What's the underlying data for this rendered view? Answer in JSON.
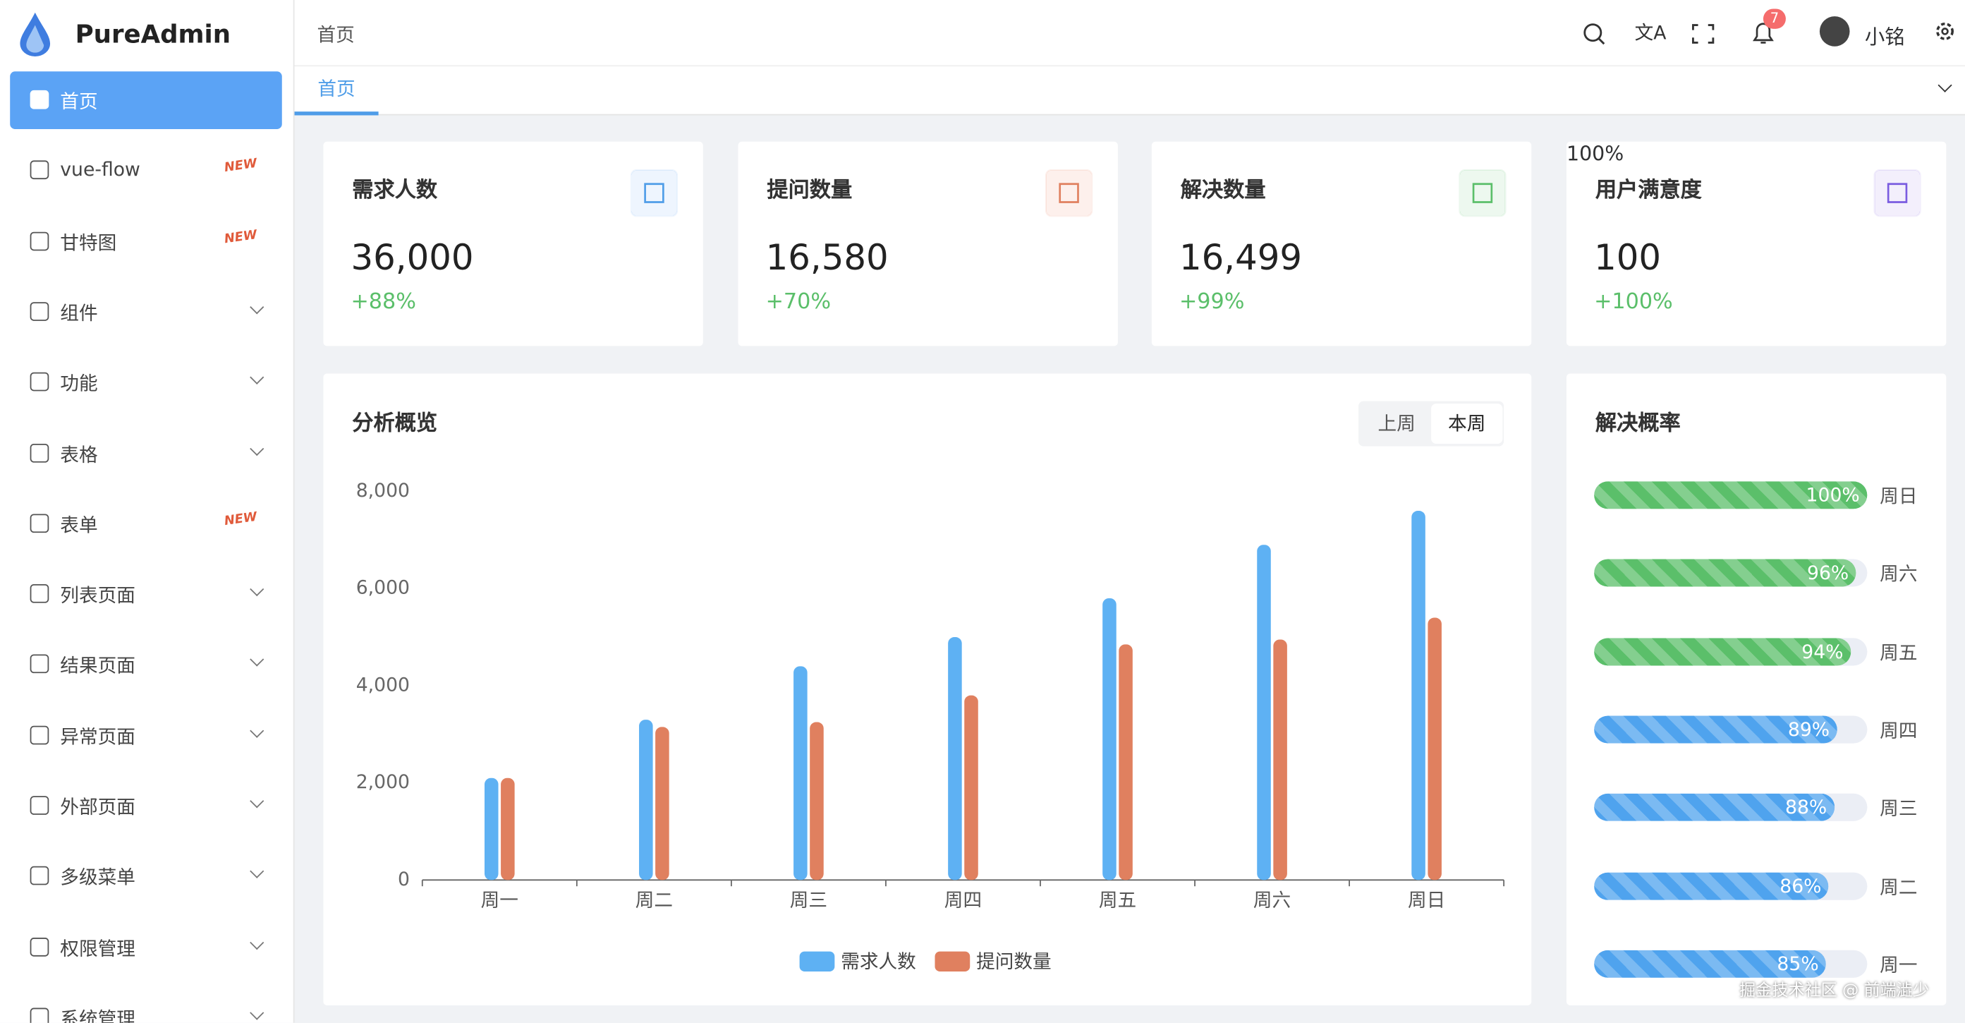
{
  "brand": "PureAdmin",
  "menu": [
    {
      "label": "首页"
    },
    {
      "label": "vue-flow",
      "badge": "NEW"
    },
    {
      "label": "甘特图",
      "badge": "NEW"
    },
    {
      "label": "组件"
    },
    {
      "label": "功能"
    },
    {
      "label": "表格"
    },
    {
      "label": "表单",
      "badge": "NEW"
    },
    {
      "label": "列表页面"
    },
    {
      "label": "结果页面"
    },
    {
      "label": "异常页面"
    },
    {
      "label": "外部页面"
    },
    {
      "label": "多级菜单"
    },
    {
      "label": "权限管理"
    },
    {
      "label": "系统管理"
    }
  ],
  "header": {
    "breadcrumb": "首页",
    "notifications": "7",
    "user": "小铭",
    "tab": "首页"
  },
  "cards": [
    {
      "title": "需求人数",
      "value": "36,000",
      "change": "+88%"
    },
    {
      "title": "提问数量",
      "value": "16,580",
      "change": "+70%"
    },
    {
      "title": "解决数量",
      "value": "16,499",
      "change": "+99%"
    },
    {
      "title": "用户满意度",
      "value": "100",
      "change": "+100%",
      "ring": "100%"
    }
  ],
  "chart_data": {
    "type": "bar",
    "title": "分析概览",
    "toggle": [
      "上周",
      "本周"
    ],
    "categories": [
      "周一",
      "周二",
      "周三",
      "周四",
      "周五",
      "周六",
      "周日"
    ],
    "series": [
      {
        "name": "需求人数",
        "color": "#5eb1f3",
        "values": [
          2100,
          3300,
          4400,
          5000,
          5800,
          6900,
          7600
        ]
      },
      {
        "name": "提问数量",
        "color": "#e0805f",
        "values": [
          2100,
          3150,
          3250,
          3800,
          4850,
          4950,
          5400
        ]
      }
    ],
    "ylim": [
      0,
      8000
    ],
    "yticks": [
      0,
      {
        "value": 2000,
        "label": "2,000"
      },
      {
        "value": 4000,
        "label": "4,000"
      },
      {
        "value": 6000,
        "label": "6,000"
      },
      {
        "value": 8000,
        "label": "8,000"
      }
    ],
    "grid": false
  },
  "rates": {
    "title": "解决概率",
    "items": [
      {
        "day": "周日",
        "value": 100,
        "label": "100%",
        "color": "#5bbf6a"
      },
      {
        "day": "周六",
        "value": 96,
        "label": "96%",
        "color": "#5bbf6a"
      },
      {
        "day": "周五",
        "value": 94,
        "label": "94%",
        "color": "#5bbf6a"
      },
      {
        "day": "周四",
        "value": 89,
        "label": "89%",
        "color": "#4fa3ee"
      },
      {
        "day": "周三",
        "value": 88,
        "label": "88%",
        "color": "#4fa3ee"
      },
      {
        "day": "周二",
        "value": 86,
        "label": "86%",
        "color": "#4fa3ee"
      },
      {
        "day": "周一",
        "value": 85,
        "label": "85%",
        "color": "#4fa3ee"
      }
    ]
  },
  "watermark": "掘金技术社区 @ 前端澁少"
}
